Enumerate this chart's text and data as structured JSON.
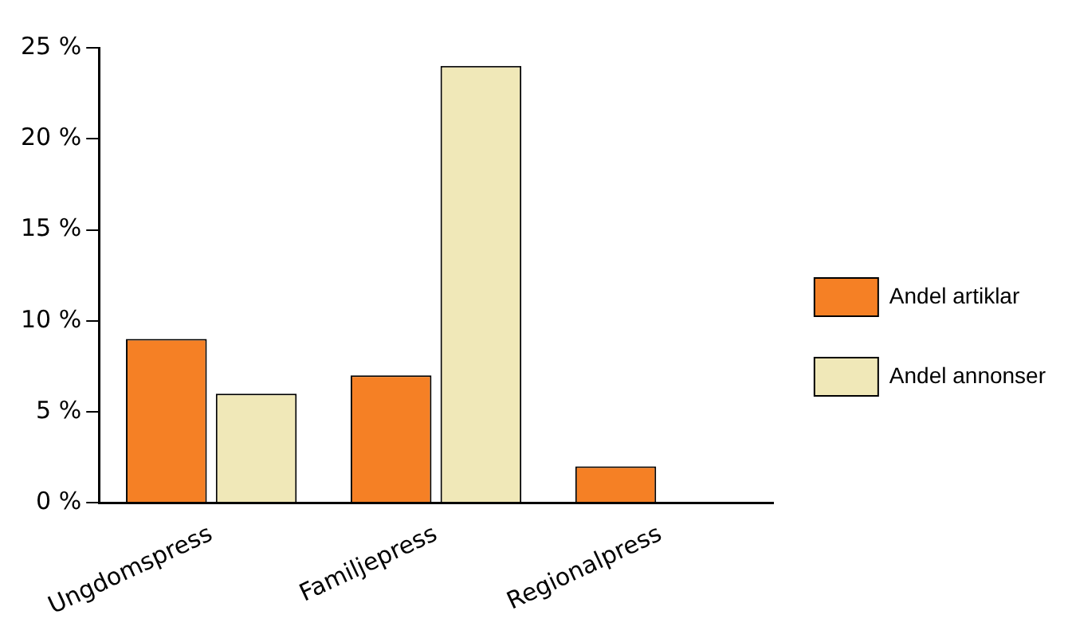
{
  "chart_data": {
    "type": "bar",
    "categories": [
      "Ungdomspress",
      "Familjepress",
      "Regionalpress"
    ],
    "series": [
      {
        "name": "Andel artiklar",
        "color": "#f58025",
        "values": [
          9,
          7,
          2
        ]
      },
      {
        "name": "Andel annonser",
        "color": "#f0e8b8",
        "values": [
          6,
          24,
          0
        ]
      }
    ],
    "ylim": [
      0,
      25
    ],
    "yticks": [
      {
        "value": 0,
        "label": "0 %"
      },
      {
        "value": 5,
        "label": "5 %"
      },
      {
        "value": 10,
        "label": "10 %"
      },
      {
        "value": 15,
        "label": "15 %"
      },
      {
        "value": 20,
        "label": "20 %"
      },
      {
        "value": 25,
        "label": "25 %"
      }
    ],
    "grid": false,
    "legend": "right"
  }
}
